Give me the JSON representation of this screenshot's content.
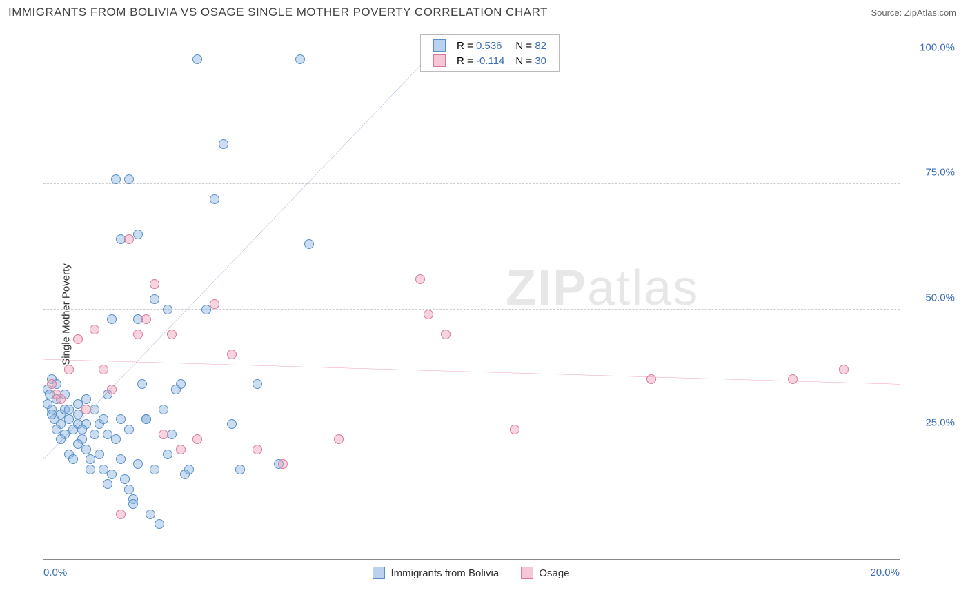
{
  "header": {
    "title": "IMMIGRANTS FROM BOLIVIA VS OSAGE SINGLE MOTHER POVERTY CORRELATION CHART",
    "source": "Source: ZipAtlas.com"
  },
  "chart": {
    "type": "scatter",
    "ylabel": "Single Mother Poverty",
    "xlim": [
      0,
      20
    ],
    "ylim": [
      0,
      105
    ],
    "xticks": [
      {
        "v": 0,
        "label": "0.0%",
        "align": "left"
      },
      {
        "v": 20,
        "label": "20.0%",
        "align": "right"
      }
    ],
    "yticks": [
      {
        "v": 25,
        "label": "25.0%"
      },
      {
        "v": 50,
        "label": "50.0%"
      },
      {
        "v": 75,
        "label": "75.0%"
      },
      {
        "v": 100,
        "label": "100.0%"
      }
    ],
    "gridlines_y": [
      25,
      50,
      75,
      100
    ],
    "watermark": "ZIPatlas",
    "series": [
      {
        "key": "a",
        "name": "Immigrants from Bolivia",
        "color_fill": "rgba(140,180,225,0.45)",
        "color_stroke": "#5a8fc7",
        "trend_color": "#2a5bb0",
        "trend_width": 2,
        "r_label": "R =",
        "r_value": "0.536",
        "n_label": "N =",
        "n_value": "82",
        "trend": {
          "x1": 0,
          "y1": 20,
          "x2": 9.5,
          "y2": 105
        },
        "points": [
          [
            0.1,
            34
          ],
          [
            0.2,
            36
          ],
          [
            0.15,
            33
          ],
          [
            0.2,
            30
          ],
          [
            0.3,
            32
          ],
          [
            0.1,
            31
          ],
          [
            0.25,
            28
          ],
          [
            0.3,
            35
          ],
          [
            0.4,
            29
          ],
          [
            0.4,
            27
          ],
          [
            0.5,
            30
          ],
          [
            0.5,
            25
          ],
          [
            0.6,
            28
          ],
          [
            0.7,
            26
          ],
          [
            0.8,
            27
          ],
          [
            0.8,
            29
          ],
          [
            0.9,
            24
          ],
          [
            1.0,
            27
          ],
          [
            1.0,
            22
          ],
          [
            1.1,
            20
          ],
          [
            1.2,
            25
          ],
          [
            1.2,
            30
          ],
          [
            1.3,
            27
          ],
          [
            1.4,
            18
          ],
          [
            1.4,
            28
          ],
          [
            1.5,
            15
          ],
          [
            1.5,
            25
          ],
          [
            1.6,
            17
          ],
          [
            1.7,
            24
          ],
          [
            1.8,
            20
          ],
          [
            1.8,
            28
          ],
          [
            2.0,
            14
          ],
          [
            2.0,
            26
          ],
          [
            2.1,
            12
          ],
          [
            2.2,
            19
          ],
          [
            2.3,
            35
          ],
          [
            2.4,
            28
          ],
          [
            2.5,
            9
          ],
          [
            2.6,
            18
          ],
          [
            2.7,
            7
          ],
          [
            2.8,
            30
          ],
          [
            2.9,
            50
          ],
          [
            3.0,
            25
          ],
          [
            3.2,
            35
          ],
          [
            3.4,
            18
          ],
          [
            3.6,
            100
          ],
          [
            3.8,
            50
          ],
          [
            4.0,
            72
          ],
          [
            4.2,
            83
          ],
          [
            4.4,
            27
          ],
          [
            4.6,
            18
          ],
          [
            5.0,
            35
          ],
          [
            5.5,
            19
          ],
          [
            6.0,
            100
          ],
          [
            6.2,
            63
          ],
          [
            1.6,
            48
          ],
          [
            1.8,
            64
          ],
          [
            2.0,
            76
          ],
          [
            2.2,
            65
          ],
          [
            2.4,
            28
          ],
          [
            1.0,
            32
          ],
          [
            0.8,
            23
          ],
          [
            0.6,
            21
          ],
          [
            0.4,
            24
          ],
          [
            0.3,
            26
          ],
          [
            0.2,
            29
          ],
          [
            1.1,
            18
          ],
          [
            1.3,
            21
          ],
          [
            1.9,
            16
          ],
          [
            2.1,
            11
          ],
          [
            0.7,
            20
          ],
          [
            0.9,
            26
          ],
          [
            1.5,
            33
          ],
          [
            2.9,
            21
          ],
          [
            3.1,
            34
          ],
          [
            3.3,
            17
          ],
          [
            1.7,
            76
          ],
          [
            2.2,
            48
          ],
          [
            2.6,
            52
          ],
          [
            0.5,
            33
          ],
          [
            0.6,
            30
          ],
          [
            0.8,
            31
          ]
        ]
      },
      {
        "key": "b",
        "name": "Osage",
        "color_fill": "rgba(240,160,185,0.45)",
        "color_stroke": "#d77a9a",
        "trend_color": "#e05a8a",
        "trend_width": 2,
        "r_label": "R =",
        "r_value": "-0.114",
        "n_label": "N =",
        "n_value": "30",
        "trend": {
          "x1": 0,
          "y1": 40,
          "x2": 20,
          "y2": 35
        },
        "points": [
          [
            0.2,
            35
          ],
          [
            0.4,
            32
          ],
          [
            0.6,
            38
          ],
          [
            0.8,
            44
          ],
          [
            1.0,
            30
          ],
          [
            1.2,
            46
          ],
          [
            1.4,
            38
          ],
          [
            1.6,
            34
          ],
          [
            1.8,
            9
          ],
          [
            2.0,
            64
          ],
          [
            2.2,
            45
          ],
          [
            2.4,
            48
          ],
          [
            2.6,
            55
          ],
          [
            2.8,
            25
          ],
          [
            3.0,
            45
          ],
          [
            3.2,
            22
          ],
          [
            3.6,
            24
          ],
          [
            4.0,
            51
          ],
          [
            4.4,
            41
          ],
          [
            5.0,
            22
          ],
          [
            5.6,
            19
          ],
          [
            6.9,
            24
          ],
          [
            8.8,
            56
          ],
          [
            9.0,
            49
          ],
          [
            9.4,
            45
          ],
          [
            11.0,
            26
          ],
          [
            14.2,
            36
          ],
          [
            17.5,
            36
          ],
          [
            18.7,
            38
          ],
          [
            0.3,
            33
          ]
        ]
      }
    ],
    "bottom_legend": [
      {
        "swatch": "a",
        "label": "Immigrants from Bolivia"
      },
      {
        "swatch": "b",
        "label": "Osage"
      }
    ]
  }
}
